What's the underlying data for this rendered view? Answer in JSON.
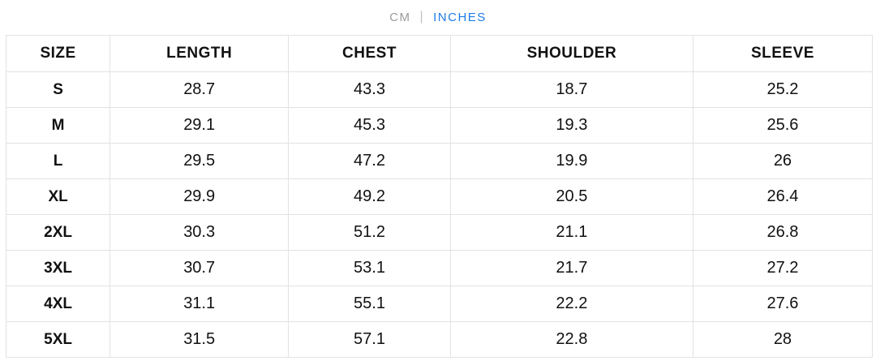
{
  "unit_toggle": {
    "cm_label": "CM",
    "separator": "|",
    "inches_label": "INCHES",
    "active_unit": "INCHES",
    "active_color": "#1d7de9",
    "inactive_color": "#9b9b9b"
  },
  "size_chart": {
    "columns": [
      "SIZE",
      "LENGTH",
      "CHEST",
      "SHOULDER",
      "SLEEVE"
    ],
    "rows": [
      [
        "S",
        "28.7",
        "43.3",
        "18.7",
        "25.2"
      ],
      [
        "M",
        "29.1",
        "45.3",
        "19.3",
        "25.6"
      ],
      [
        "L",
        "29.5",
        "47.2",
        "19.9",
        "26"
      ],
      [
        "XL",
        "29.9",
        "49.2",
        "20.5",
        "26.4"
      ],
      [
        "2XL",
        "30.3",
        "51.2",
        "21.1",
        "26.8"
      ],
      [
        "3XL",
        "30.7",
        "53.1",
        "21.7",
        "27.2"
      ],
      [
        "4XL",
        "31.1",
        "55.1",
        "22.2",
        "27.6"
      ],
      [
        "5XL",
        "31.5",
        "57.1",
        "22.8",
        "28"
      ]
    ]
  }
}
